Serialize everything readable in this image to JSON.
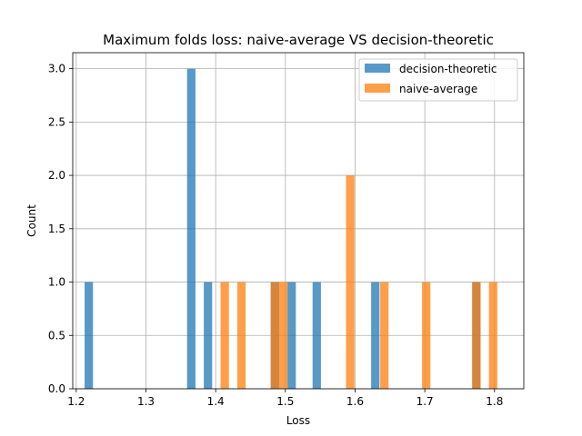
{
  "chart_data": {
    "type": "bar",
    "title": "Maximum folds loss: naive-average VS decision-theoretic",
    "xlabel": "Loss",
    "ylabel": "Count",
    "xlim": [
      1.195,
      1.842
    ],
    "ylim": [
      0.0,
      3.15
    ],
    "xticks": [
      1.2,
      1.3,
      1.4,
      1.5,
      1.6,
      1.7,
      1.8
    ],
    "xtick_labels": [
      "1.2",
      "1.3",
      "1.4",
      "1.5",
      "1.6",
      "1.7",
      "1.8"
    ],
    "yticks": [
      0.0,
      0.5,
      1.0,
      1.5,
      2.0,
      2.5,
      3.0
    ],
    "ytick_labels": [
      "0.0",
      "0.5",
      "1.0",
      "1.5",
      "2.0",
      "2.5",
      "3.0"
    ],
    "grid": true,
    "legend_position": "top-right",
    "bin_width": 0.012,
    "series": [
      {
        "name": "decision-theoretic",
        "color": "#1f77b4",
        "opacity": 0.75,
        "bins": [
          {
            "x": 1.218,
            "count": 1
          },
          {
            "x": 1.365,
            "count": 3
          },
          {
            "x": 1.389,
            "count": 1
          },
          {
            "x": 1.485,
            "count": 1
          },
          {
            "x": 1.509,
            "count": 1
          },
          {
            "x": 1.545,
            "count": 1
          },
          {
            "x": 1.629,
            "count": 1
          },
          {
            "x": 1.774,
            "count": 1
          }
        ]
      },
      {
        "name": "naive-average",
        "color": "#ff7f0e",
        "opacity": 0.75,
        "bins": [
          {
            "x": 1.413,
            "count": 1
          },
          {
            "x": 1.437,
            "count": 1
          },
          {
            "x": 1.485,
            "count": 1
          },
          {
            "x": 1.497,
            "count": 1
          },
          {
            "x": 1.593,
            "count": 2
          },
          {
            "x": 1.642,
            "count": 1
          },
          {
            "x": 1.702,
            "count": 1
          },
          {
            "x": 1.774,
            "count": 1
          },
          {
            "x": 1.798,
            "count": 1
          }
        ]
      }
    ]
  }
}
